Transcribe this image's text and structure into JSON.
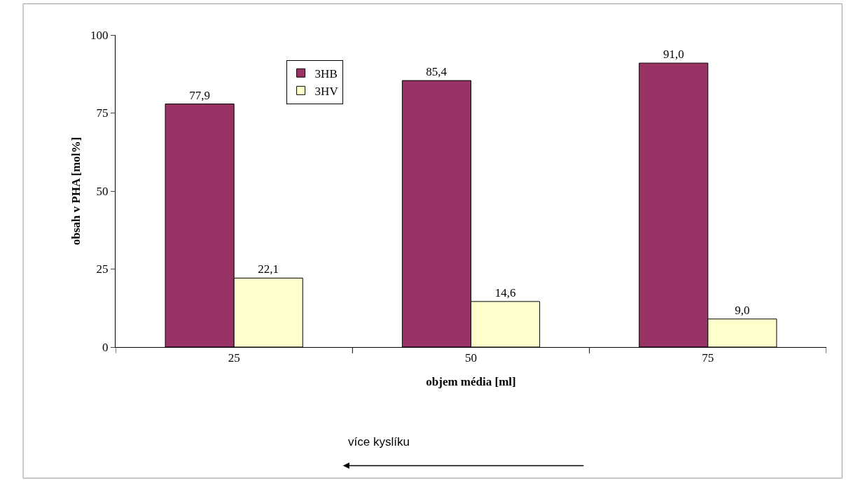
{
  "chart_data": {
    "type": "bar",
    "xlabel": "objem média [ml]",
    "ylabel": "obsah v PHA [mol%]",
    "categories": [
      "25",
      "50",
      "75"
    ],
    "series": [
      {
        "name": "3HB",
        "color": "#993366",
        "values": [
          77.9,
          85.4,
          91.0
        ],
        "value_labels": [
          "77,9",
          "85,4",
          "91,0"
        ]
      },
      {
        "name": "3HV",
        "color": "#ffffcc",
        "values": [
          22.1,
          14.6,
          9.0
        ],
        "value_labels": [
          "22,1",
          "14,6",
          "9,0"
        ]
      }
    ],
    "ylim": [
      0,
      100
    ],
    "yticks": [
      0,
      25,
      50,
      75,
      100
    ],
    "grid": false,
    "legend": "top left",
    "annotations": [
      "více kyslíku"
    ]
  }
}
